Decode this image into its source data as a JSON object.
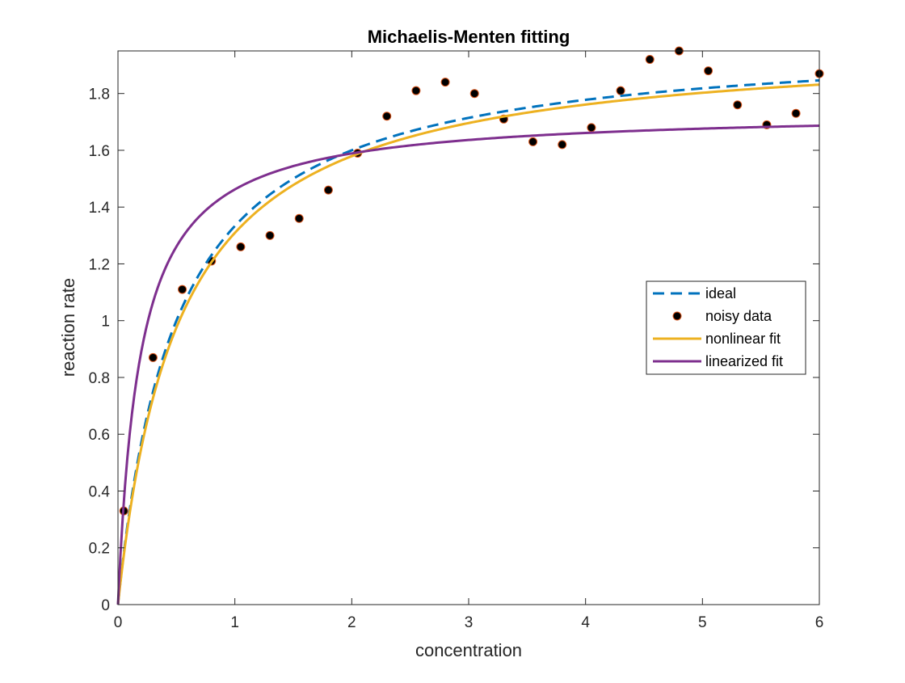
{
  "chart_data": {
    "type": "line",
    "title": "Michaelis-Menten fitting",
    "xlabel": "concentration",
    "ylabel": "reaction rate",
    "xlim": [
      0,
      6
    ],
    "ylim": [
      0,
      1.95
    ],
    "xticks": [
      "0",
      "1",
      "2",
      "3",
      "4",
      "5",
      "6"
    ],
    "yticks": [
      "0",
      "0.2",
      "0.4",
      "0.6",
      "0.8",
      "1",
      "1.2",
      "1.4",
      "1.6",
      "1.8"
    ],
    "grid": false,
    "legend_position": "right",
    "series": [
      {
        "name": "ideal",
        "kind": "dashed-line",
        "color": "#0072BD",
        "model": {
          "Vmax": 2.0,
          "Km": 0.5
        }
      },
      {
        "name": "noisy data",
        "kind": "markers",
        "color": "#D95319",
        "x": [
          0.05,
          0.3,
          0.55,
          0.8,
          1.05,
          1.3,
          1.55,
          1.8,
          2.05,
          2.3,
          2.55,
          2.8,
          3.05,
          3.3,
          3.55,
          3.8,
          4.05,
          4.3,
          4.55,
          4.8,
          5.05,
          5.3,
          5.55,
          5.8,
          6.0
        ],
        "y": [
          0.33,
          0.87,
          1.11,
          1.21,
          1.26,
          1.3,
          1.36,
          1.46,
          1.59,
          1.72,
          1.81,
          1.84,
          1.8,
          1.71,
          1.63,
          1.62,
          1.68,
          1.81,
          1.92,
          1.95,
          1.88,
          1.76,
          1.69,
          1.73,
          1.87
        ]
      },
      {
        "name": "nonlinear fit",
        "kind": "line",
        "color": "#EDB120",
        "model": {
          "Vmax": 1.99,
          "Km": 0.52
        }
      },
      {
        "name": "linearized fit",
        "kind": "line",
        "color": "#7E2F8E",
        "model": {
          "Vmax": 1.74,
          "Km": 0.19
        }
      }
    ]
  }
}
